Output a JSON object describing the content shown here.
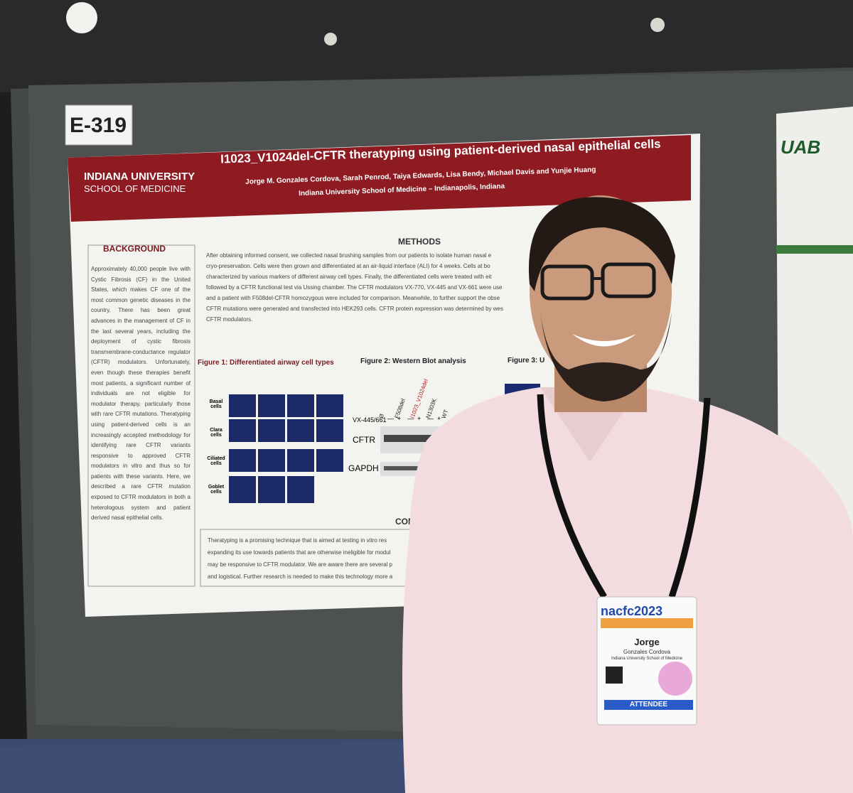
{
  "booth": {
    "number": "E-319"
  },
  "poster": {
    "institution": {
      "name": "INDIANA UNIVERSITY",
      "school": "SCHOOL OF MEDICINE"
    },
    "title": "I1023_V1024del-CFTR theratyping using patient-derived nasal epithelial cells",
    "authors": "Jorge M. Gonzales Cordova, Sarah Penrod, Taiya Edwards, Lisa Bendy, Michael Davis and Yunjie Huang",
    "affiliation": "Indiana University School of Medicine – Indianapolis, Indiana",
    "background": {
      "heading": "BACKGROUND",
      "text": "Approximately 40,000 people live with Cystic Fibrosis (CF) in the United States, which makes CF one of the most common genetic diseases in the country. There has been great advances in the management of CF in the last several years, including the deployment of cystic fibrosis transmembrane-conductance regulator (CFTR) modulators. Unfortunately, even though these therapies benefit most patients, a significant number of individuals are not eligible for modulator therapy, particularly those with rare CFTR mutations. Theratyping using patient-derived cells is an increasingly accepted methodology for identifying rare CFTR variants responsive to approved CFTR modulators in vitro and thus so for patients with these variants. Here, we described a rare CFTR mutation exposed to CFTR modulators in both a heterologous system and patient derived nasal epithelial cells."
    },
    "methods": {
      "heading": "METHODS",
      "lines": [
        "After obtaining informed consent, we collected nasal brushing samples from our patients to isolate human nasal e",
        "cryo-preservation. Cells were then grown and differentiated at an air-liquid interface (ALI) for 4 weeks. Cells at bo",
        "characterized by various markers of different airway cell types. Finally, the differentiated cells were treated with eit",
        "followed by a CFTR functional test via Ussing chamber. The CFTR modulators VX-770, VX-445 and VX-661 were use",
        "and a patient with F508del-CFTR homozygous were included for comparison. Meanwhile, to further support the obse",
        "CFTR mutations were generated and transfected into HEK293 cells. CFTR protein expression was determined by wes",
        "CFTR modulators."
      ]
    },
    "figure1": {
      "title": "Figure 1: Differentiated airway cell types",
      "rows": [
        "Basal cells",
        "Clara cells",
        "Ciliated cells",
        "Goblet cells"
      ]
    },
    "figure2": {
      "title": "Figure 2: Western Blot analysis",
      "treatment": "VX-445/661",
      "lanes": [
        "Ø",
        "F508del",
        "I1023_V1024del",
        "N1303K",
        "WT"
      ],
      "signs": [
        "—",
        "+",
        "—",
        "+",
        "—",
        "+"
      ],
      "bands": [
        "CFTR",
        "GAPDH"
      ]
    },
    "figure3": {
      "title": "Figure 3: U"
    },
    "conclusion": {
      "heading": "CONC",
      "lines": [
        "Theratyping is a promising technique that is aimed at testing in vitro res",
        "expanding its use towards patients that are otherwise ineligible for modul",
        "may be responsive to CFTR modulator. We are aware there are several p",
        "and logistical. Further research is needed to make this technology more a"
      ]
    }
  },
  "neighbor_poster": {
    "logo": "UAB"
  },
  "badge": {
    "event": "nacfc2023",
    "first_name": "Jorge",
    "last_name": "Gonzales Cordova",
    "affiliation": "Indiana University School of Medicine",
    "role": "ATTENDEE"
  }
}
